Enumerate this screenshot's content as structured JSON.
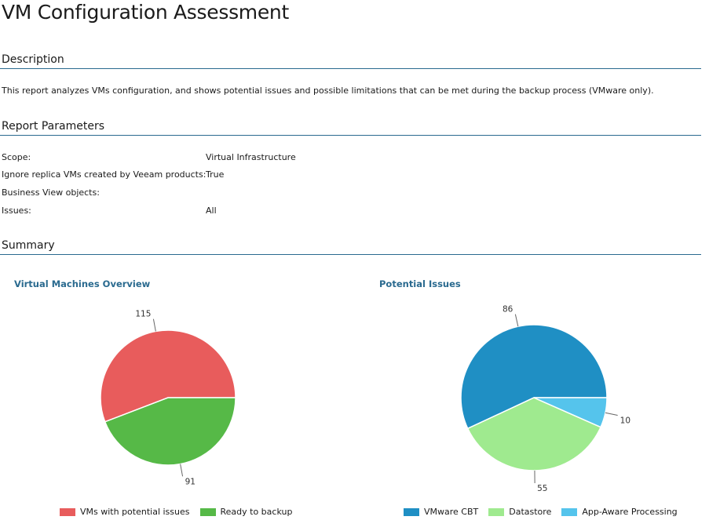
{
  "page": {
    "title": "VM Configuration Assessment"
  },
  "sections": {
    "description": "Description",
    "parameters": "Report Parameters",
    "summary": "Summary"
  },
  "description_text": "This report analyzes VMs configuration, and shows potential issues and possible limitations that can be met during the backup process (VMware only).",
  "parameters": [
    {
      "label": "Scope:",
      "value": "Virtual Infrastructure"
    },
    {
      "label": "Ignore replica VMs created by Veeam products:",
      "value": "True"
    },
    {
      "label": "Business View objects:",
      "value": ""
    },
    {
      "label": "Issues:",
      "value": "All"
    }
  ],
  "chart_data": [
    {
      "type": "pie",
      "title": "Virtual Machines Overview",
      "categories": [
        "VMs with potential issues",
        "Ready to backup"
      ],
      "values": [
        115,
        91
      ],
      "colors": [
        "#e85c5c",
        "#56b947"
      ],
      "legend_position": "bottom"
    },
    {
      "type": "pie",
      "title": "Potential Issues",
      "categories": [
        "VMware CBT",
        "Datastore",
        "App-Aware Processing"
      ],
      "values": [
        86,
        55,
        10
      ],
      "colors": [
        "#1f8fc4",
        "#9fea8f",
        "#55c4ec"
      ],
      "legend_position": "bottom"
    }
  ]
}
